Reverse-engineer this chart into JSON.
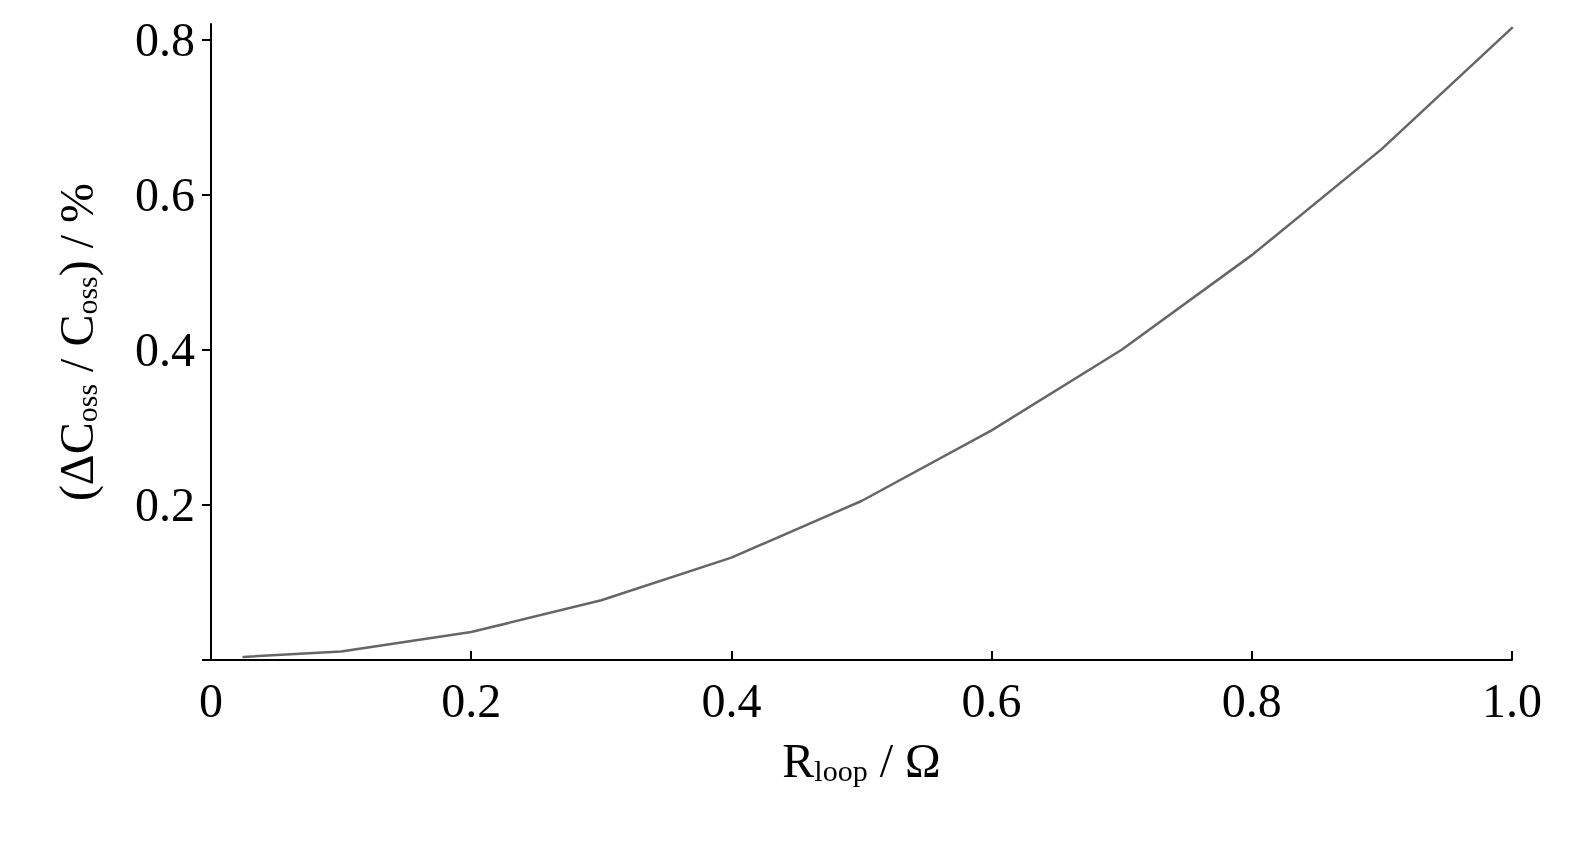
{
  "chart_data": {
    "type": "line",
    "xlabel": "R$_{loop}$ / Ω",
    "ylabel": "(ΔC$_{oss}$ / C$_{oss}$) / %",
    "x": [
      0.025,
      0.1,
      0.2,
      0.3,
      0.4,
      0.5,
      0.6,
      0.7,
      0.8,
      0.9,
      1.0
    ],
    "series": [
      {
        "color": "#666666",
        "values": [
          0.004,
          0.011,
          0.036,
          0.077,
          0.132,
          0.205,
          0.296,
          0.4,
          0.522,
          0.659,
          0.815
        ]
      }
    ],
    "xlim": [
      0,
      1
    ],
    "ylim": [
      0,
      0.82
    ],
    "xticks": [
      0,
      {
        "value": 0.2,
        "label": "0.2"
      },
      {
        "value": 0.4,
        "label": "0.4"
      },
      {
        "value": 0.6,
        "label": "0.6"
      },
      {
        "value": 0.8,
        "label": "0.8"
      },
      {
        "value": 1,
        "label": "1.0"
      }
    ],
    "yticks": [
      {
        "value": 0,
        "label": null
      },
      0.2,
      0.4,
      0.6,
      0.8
    ],
    "grid": false,
    "marker": "none",
    "line_style": "solid"
  }
}
